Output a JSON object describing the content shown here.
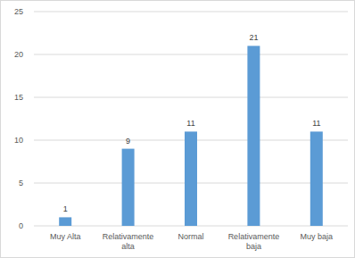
{
  "chart_data": {
    "type": "bar",
    "categories": [
      "Muy Alta",
      "Relativamente alta",
      "Normal",
      "Relativamente baja",
      "Muy baja"
    ],
    "values": [
      1,
      9,
      11,
      21,
      11
    ],
    "color": "#5b9bd5",
    "ylim": [
      0,
      25
    ],
    "yticks": [
      0,
      5,
      10,
      15,
      20,
      25
    ],
    "grid": true,
    "data_labels": true
  }
}
